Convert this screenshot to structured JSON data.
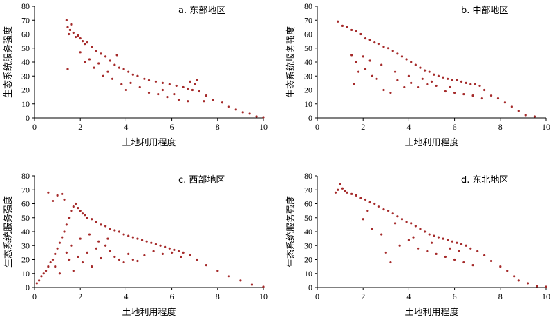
{
  "chart_data": [
    {
      "type": "scatter",
      "title": "a. 东部地区",
      "xlabel": "土地利用程度",
      "ylabel": "生态系统服务强度",
      "xlim": [
        0,
        10
      ],
      "ylim": [
        0,
        80
      ],
      "xticks": [
        "0",
        "2",
        "4",
        "6",
        "8",
        "10"
      ],
      "yticks": [
        "0",
        "10",
        "20",
        "30",
        "40",
        "50",
        "60",
        "70",
        "80"
      ],
      "point_color": "#a52a2a",
      "points": [
        [
          1.4,
          70
        ],
        [
          1.45,
          65
        ],
        [
          1.5,
          60
        ],
        [
          1.55,
          63
        ],
        [
          1.6,
          67
        ],
        [
          1.7,
          61
        ],
        [
          1.8,
          58
        ],
        [
          1.9,
          59
        ],
        [
          2.0,
          57
        ],
        [
          2.1,
          55
        ],
        [
          2.2,
          53
        ],
        [
          2.3,
          54
        ],
        [
          2.5,
          51
        ],
        [
          2.7,
          48
        ],
        [
          2.9,
          46
        ],
        [
          3.1,
          44
        ],
        [
          3.3,
          41
        ],
        [
          3.5,
          38
        ],
        [
          3.7,
          36
        ],
        [
          3.9,
          35
        ],
        [
          4.1,
          33
        ],
        [
          4.3,
          31
        ],
        [
          4.5,
          30
        ],
        [
          4.8,
          28
        ],
        [
          5.0,
          27
        ],
        [
          5.3,
          26
        ],
        [
          5.6,
          25
        ],
        [
          5.9,
          24
        ],
        [
          6.2,
          23
        ],
        [
          6.5,
          22
        ],
        [
          6.7,
          21
        ],
        [
          6.9,
          20
        ],
        [
          7.0,
          24
        ],
        [
          7.1,
          27
        ],
        [
          6.8,
          26
        ],
        [
          7.2,
          19
        ],
        [
          7.5,
          16
        ],
        [
          7.8,
          13
        ],
        [
          8.2,
          11
        ],
        [
          8.5,
          8
        ],
        [
          8.8,
          6
        ],
        [
          9.1,
          4
        ],
        [
          9.4,
          3
        ],
        [
          9.7,
          1
        ],
        [
          10.0,
          0.5
        ],
        [
          1.45,
          35
        ],
        [
          2.2,
          40
        ],
        [
          2.6,
          36
        ],
        [
          3.0,
          30
        ],
        [
          3.4,
          28
        ],
        [
          3.8,
          24
        ],
        [
          4.2,
          25
        ],
        [
          4.6,
          22
        ],
        [
          5.0,
          18
        ],
        [
          5.4,
          17
        ],
        [
          5.8,
          15
        ],
        [
          6.3,
          13
        ],
        [
          6.7,
          12
        ],
        [
          2.4,
          42
        ],
        [
          3.6,
          45
        ],
        [
          4.0,
          20
        ],
        [
          5.6,
          20
        ],
        [
          6.1,
          17
        ],
        [
          7.4,
          12
        ],
        [
          2.0,
          47
        ],
        [
          2.8,
          39
        ],
        [
          3.2,
          33
        ]
      ]
    },
    {
      "type": "scatter",
      "title": "b. 中部地区",
      "xlabel": "土地利用程度",
      "ylabel": "生态系统服务强度",
      "xlim": [
        0,
        10
      ],
      "ylim": [
        0,
        80
      ],
      "xticks": [
        "0",
        "2",
        "4",
        "6",
        "8",
        "10"
      ],
      "yticks": [
        "0",
        "10",
        "20",
        "30",
        "40",
        "50",
        "60",
        "70",
        "80"
      ],
      "point_color": "#a52a2a",
      "points": [
        [
          0.9,
          69
        ],
        [
          1.1,
          66
        ],
        [
          1.3,
          65
        ],
        [
          1.5,
          63
        ],
        [
          1.7,
          62
        ],
        [
          1.9,
          60
        ],
        [
          2.1,
          57
        ],
        [
          2.3,
          56
        ],
        [
          2.5,
          54
        ],
        [
          2.7,
          53
        ],
        [
          2.9,
          51
        ],
        [
          3.1,
          50
        ],
        [
          3.3,
          48
        ],
        [
          3.5,
          46
        ],
        [
          3.7,
          44
        ],
        [
          3.9,
          42
        ],
        [
          4.1,
          40
        ],
        [
          4.3,
          38
        ],
        [
          4.5,
          36
        ],
        [
          4.7,
          34
        ],
        [
          4.9,
          33
        ],
        [
          5.1,
          31
        ],
        [
          5.3,
          30
        ],
        [
          5.5,
          29
        ],
        [
          5.7,
          28
        ],
        [
          5.9,
          27
        ],
        [
          6.1,
          27
        ],
        [
          6.3,
          26
        ],
        [
          6.5,
          25
        ],
        [
          6.7,
          24
        ],
        [
          6.9,
          24
        ],
        [
          7.1,
          23
        ],
        [
          7.3,
          20
        ],
        [
          7.6,
          16
        ],
        [
          7.9,
          14
        ],
        [
          8.2,
          11
        ],
        [
          8.5,
          8
        ],
        [
          8.8,
          5
        ],
        [
          9.1,
          2
        ],
        [
          9.5,
          1
        ],
        [
          1.6,
          24
        ],
        [
          1.8,
          33
        ],
        [
          2.1,
          35
        ],
        [
          2.4,
          30
        ],
        [
          2.6,
          28
        ],
        [
          2.9,
          20
        ],
        [
          3.2,
          18
        ],
        [
          3.5,
          27
        ],
        [
          3.8,
          22
        ],
        [
          4.1,
          25
        ],
        [
          4.4,
          22
        ],
        [
          4.8,
          24
        ],
        [
          5.2,
          23
        ],
        [
          5.6,
          19
        ],
        [
          6.0,
          18
        ],
        [
          6.4,
          17
        ],
        [
          6.8,
          16
        ],
        [
          7.2,
          14
        ],
        [
          1.5,
          45
        ],
        [
          1.7,
          40
        ],
        [
          2.0,
          44
        ],
        [
          2.3,
          41
        ],
        [
          2.8,
          38
        ],
        [
          3.4,
          33
        ],
        [
          4.0,
          30
        ],
        [
          4.6,
          28
        ],
        [
          5.0,
          26
        ],
        [
          5.8,
          22
        ]
      ]
    },
    {
      "type": "scatter",
      "title": "c. 西部地区",
      "xlabel": "土地利用程度",
      "ylabel": "生态系统服务强度",
      "xlim": [
        0,
        10
      ],
      "ylim": [
        0,
        80
      ],
      "xticks": [
        "0",
        "2",
        "4",
        "6",
        "8",
        "10"
      ],
      "yticks": [
        "0",
        "10",
        "20",
        "30",
        "40",
        "50",
        "60",
        "70",
        "80"
      ],
      "point_color": "#a52a2a",
      "points": [
        [
          0.1,
          3
        ],
        [
          0.2,
          5
        ],
        [
          0.3,
          8
        ],
        [
          0.4,
          10
        ],
        [
          0.5,
          12
        ],
        [
          0.6,
          15
        ],
        [
          0.7,
          18
        ],
        [
          0.8,
          20
        ],
        [
          0.9,
          24
        ],
        [
          1.0,
          28
        ],
        [
          1.1,
          32
        ],
        [
          1.2,
          36
        ],
        [
          1.3,
          40
        ],
        [
          1.4,
          45
        ],
        [
          1.5,
          50
        ],
        [
          1.6,
          55
        ],
        [
          1.7,
          58
        ],
        [
          1.8,
          60
        ],
        [
          1.9,
          57
        ],
        [
          2.0,
          55
        ],
        [
          2.1,
          53
        ],
        [
          2.2,
          52
        ],
        [
          2.3,
          50
        ],
        [
          2.5,
          49
        ],
        [
          2.7,
          47
        ],
        [
          2.9,
          45
        ],
        [
          3.1,
          44
        ],
        [
          3.3,
          42
        ],
        [
          3.5,
          41
        ],
        [
          3.7,
          40
        ],
        [
          3.9,
          38
        ],
        [
          4.1,
          37
        ],
        [
          4.3,
          36
        ],
        [
          4.5,
          35
        ],
        [
          4.7,
          34
        ],
        [
          4.9,
          33
        ],
        [
          5.1,
          32
        ],
        [
          5.3,
          31
        ],
        [
          5.5,
          30
        ],
        [
          5.7,
          29
        ],
        [
          5.9,
          28
        ],
        [
          6.1,
          27
        ],
        [
          6.3,
          26
        ],
        [
          6.5,
          25
        ],
        [
          6.8,
          23
        ],
        [
          7.1,
          20
        ],
        [
          7.5,
          16
        ],
        [
          8.0,
          12
        ],
        [
          8.5,
          8
        ],
        [
          9.0,
          5
        ],
        [
          9.5,
          2
        ],
        [
          10.0,
          0.5
        ],
        [
          0.6,
          68
        ],
        [
          0.8,
          62
        ],
        [
          1.0,
          66
        ],
        [
          1.2,
          67
        ],
        [
          1.3,
          63
        ],
        [
          1.5,
          20
        ],
        [
          1.7,
          12
        ],
        [
          1.9,
          22
        ],
        [
          2.1,
          18
        ],
        [
          2.3,
          25
        ],
        [
          2.5,
          15
        ],
        [
          2.7,
          28
        ],
        [
          2.9,
          21
        ],
        [
          3.1,
          30
        ],
        [
          3.3,
          26
        ],
        [
          3.5,
          22
        ],
        [
          3.7,
          20
        ],
        [
          3.9,
          18
        ],
        [
          4.1,
          24
        ],
        [
          4.3,
          20
        ],
        [
          4.5,
          19
        ],
        [
          4.8,
          23
        ],
        [
          5.2,
          26
        ],
        [
          5.6,
          24
        ],
        [
          6.0,
          25
        ],
        [
          6.4,
          22
        ],
        [
          1.1,
          10
        ],
        [
          1.4,
          25
        ],
        [
          0.9,
          15
        ],
        [
          1.6,
          30
        ],
        [
          2.0,
          35
        ],
        [
          2.4,
          38
        ],
        [
          2.8,
          33
        ],
        [
          3.2,
          35
        ]
      ]
    },
    {
      "type": "scatter",
      "title": "d. 东北地区",
      "xlabel": "土地利用程度",
      "ylabel": "生态系统服务强度",
      "xlim": [
        0,
        10
      ],
      "ylim": [
        0,
        80
      ],
      "xticks": [
        "0",
        "2",
        "4",
        "6",
        "8",
        "10"
      ],
      "yticks": [
        "0",
        "10",
        "20",
        "30",
        "40",
        "50",
        "60",
        "70",
        "80"
      ],
      "point_color": "#a52a2a",
      "points": [
        [
          0.8,
          68
        ],
        [
          0.9,
          70
        ],
        [
          1.0,
          74
        ],
        [
          1.1,
          71
        ],
        [
          1.2,
          69
        ],
        [
          1.3,
          68
        ],
        [
          1.5,
          67
        ],
        [
          1.7,
          66
        ],
        [
          1.9,
          64
        ],
        [
          2.1,
          63
        ],
        [
          2.3,
          61
        ],
        [
          2.5,
          60
        ],
        [
          2.7,
          58
        ],
        [
          2.9,
          56
        ],
        [
          3.1,
          55
        ],
        [
          3.3,
          53
        ],
        [
          3.5,
          51
        ],
        [
          3.7,
          49
        ],
        [
          3.9,
          47
        ],
        [
          4.1,
          46
        ],
        [
          4.3,
          44
        ],
        [
          4.5,
          42
        ],
        [
          4.7,
          40
        ],
        [
          4.9,
          38
        ],
        [
          5.1,
          37
        ],
        [
          5.3,
          36
        ],
        [
          5.5,
          35
        ],
        [
          5.7,
          34
        ],
        [
          5.9,
          33
        ],
        [
          6.1,
          32
        ],
        [
          6.3,
          31
        ],
        [
          6.5,
          30
        ],
        [
          6.7,
          28
        ],
        [
          7.0,
          26
        ],
        [
          7.3,
          23
        ],
        [
          7.6,
          19
        ],
        [
          8.0,
          15
        ],
        [
          8.3,
          12
        ],
        [
          8.6,
          8
        ],
        [
          8.8,
          5
        ],
        [
          9.2,
          3
        ],
        [
          9.6,
          1
        ],
        [
          10.0,
          0.5
        ],
        [
          2.0,
          49
        ],
        [
          2.4,
          42
        ],
        [
          2.8,
          38
        ],
        [
          3.0,
          25
        ],
        [
          3.2,
          18
        ],
        [
          3.6,
          30
        ],
        [
          4.0,
          34
        ],
        [
          4.4,
          28
        ],
        [
          4.8,
          26
        ],
        [
          5.2,
          24
        ],
        [
          5.6,
          22
        ],
        [
          6.0,
          20
        ],
        [
          6.4,
          18
        ],
        [
          6.8,
          16
        ],
        [
          2.2,
          55
        ],
        [
          3.4,
          46
        ],
        [
          4.2,
          36
        ],
        [
          5.0,
          32
        ],
        [
          5.8,
          28
        ],
        [
          6.2,
          26
        ]
      ]
    }
  ]
}
